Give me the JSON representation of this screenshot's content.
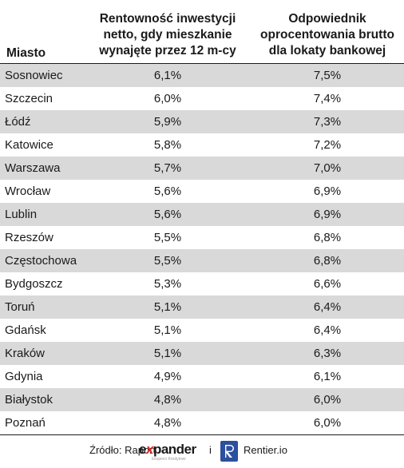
{
  "table": {
    "headers": {
      "city": "Miasto",
      "col1": [
        "Rentowność inwestycji",
        "netto, gdy mieszkanie",
        "wynajęte przez 12 m-cy"
      ],
      "col2": [
        "Odpowiednik",
        "oprocentowania brutto",
        "dla lokaty bankowej"
      ]
    },
    "rows": [
      {
        "city": "Sosnowiec",
        "v1": "6,1%",
        "v2": "7,5%"
      },
      {
        "city": "Szczecin",
        "v1": "6,0%",
        "v2": "7,4%"
      },
      {
        "city": "Łódź",
        "v1": "5,9%",
        "v2": "7,3%"
      },
      {
        "city": "Katowice",
        "v1": "5,8%",
        "v2": "7,2%"
      },
      {
        "city": "Warszawa",
        "v1": "5,7%",
        "v2": "7,0%"
      },
      {
        "city": "Wrocław",
        "v1": "5,6%",
        "v2": "6,9%"
      },
      {
        "city": "Lublin",
        "v1": "5,6%",
        "v2": "6,9%"
      },
      {
        "city": "Rzeszów",
        "v1": "5,5%",
        "v2": "6,8%"
      },
      {
        "city": "Częstochowa",
        "v1": "5,5%",
        "v2": "6,8%"
      },
      {
        "city": "Bydgoszcz",
        "v1": "5,3%",
        "v2": "6,6%"
      },
      {
        "city": "Toruń",
        "v1": "5,1%",
        "v2": "6,4%"
      },
      {
        "city": "Gdańsk",
        "v1": "5,1%",
        "v2": "6,4%"
      },
      {
        "city": "Kraków",
        "v1": "5,1%",
        "v2": "6,3%"
      },
      {
        "city": "Gdynia",
        "v1": "4,9%",
        "v2": "6,1%"
      },
      {
        "city": "Białystok",
        "v1": "4,8%",
        "v2": "6,0%"
      },
      {
        "city": "Poznań",
        "v1": "4,8%",
        "v2": "6,0%"
      }
    ]
  },
  "footer": {
    "source_label": "Źródło: Raport",
    "expander_word_pre": "e",
    "expander_word_x": "x",
    "expander_word_post": "pander",
    "expander_tagline": "Eksperci Kredytowi",
    "conjunction": "i",
    "rentier_icon": "rentier-r-logo-icon",
    "rentier_label": "Rentier.io"
  },
  "colors": {
    "row_shade": "#d9d9d9",
    "expander_accent": "#e42420",
    "rentier_blue": "#2c4f9e"
  }
}
